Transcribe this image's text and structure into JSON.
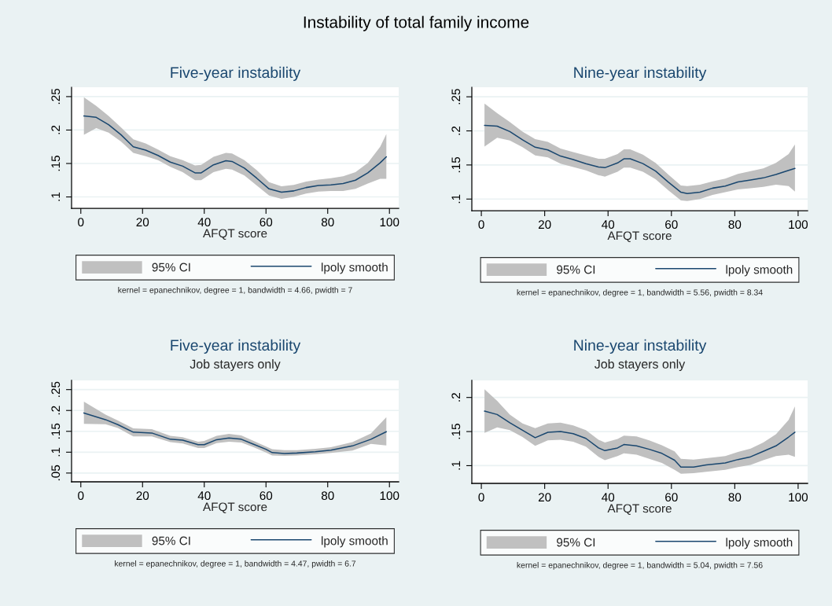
{
  "chart_data": [
    {
      "type": "other",
      "title": "Instability of total family income"
    },
    {
      "type": "line",
      "title": "Five-year instability",
      "xlabel": "AFQT score",
      "xlim": [
        -3,
        103
      ],
      "xticks": [
        0,
        20,
        40,
        60,
        80,
        100
      ],
      "ylim": [
        0.083,
        0.264
      ],
      "yticks": [
        {
          "value": 0.1,
          "label": ".1"
        },
        {
          "value": 0.15,
          "label": ".15"
        },
        {
          "value": 0.2,
          "label": ".2"
        },
        {
          "value": 0.25,
          "label": ".25"
        }
      ],
      "grid": "y",
      "legend": "bottom",
      "x": [
        1,
        5,
        9,
        13,
        17,
        21,
        25,
        29,
        33,
        37,
        39,
        43,
        47,
        49,
        53,
        57,
        61,
        65,
        69,
        73,
        77,
        81,
        85,
        89,
        93,
        97,
        99
      ],
      "series": [
        {
          "name": "lpoly smooth",
          "type": "line",
          "color": "#1a476f",
          "values": [
            0.221,
            0.219,
            0.208,
            0.193,
            0.175,
            0.17,
            0.162,
            0.152,
            0.146,
            0.136,
            0.136,
            0.148,
            0.154,
            0.153,
            0.143,
            0.128,
            0.112,
            0.107,
            0.109,
            0.114,
            0.117,
            0.118,
            0.12,
            0.125,
            0.136,
            0.151,
            0.16
          ],
          "lower": [
            0.193,
            0.203,
            0.196,
            0.183,
            0.166,
            0.161,
            0.155,
            0.145,
            0.137,
            0.125,
            0.125,
            0.137,
            0.142,
            0.141,
            0.132,
            0.117,
            0.102,
            0.097,
            0.1,
            0.105,
            0.108,
            0.109,
            0.109,
            0.112,
            0.12,
            0.127,
            0.127
          ],
          "upper": [
            0.249,
            0.236,
            0.221,
            0.204,
            0.186,
            0.18,
            0.171,
            0.161,
            0.155,
            0.147,
            0.148,
            0.16,
            0.166,
            0.165,
            0.155,
            0.14,
            0.122,
            0.116,
            0.118,
            0.123,
            0.126,
            0.128,
            0.131,
            0.137,
            0.151,
            0.175,
            0.194
          ]
        }
      ],
      "annotations": [
        "95% CI",
        "kernel = epanechnikov, degree = 1, bandwidth = 4.66, pwidth = 7"
      ]
    },
    {
      "type": "line",
      "title": "Nine-year instability",
      "xlabel": "AFQT score",
      "xlim": [
        -3,
        103
      ],
      "xticks": [
        0,
        20,
        40,
        60,
        80,
        100
      ],
      "ylim": [
        0.083,
        0.264
      ],
      "yticks": [
        {
          "value": 0.1,
          "label": ".1"
        },
        {
          "value": 0.15,
          "label": ".15"
        },
        {
          "value": 0.2,
          "label": ".2"
        },
        {
          "value": 0.25,
          "label": ".25"
        }
      ],
      "grid": "y",
      "legend": "bottom",
      "x": [
        1,
        5,
        9,
        13,
        17,
        21,
        25,
        29,
        33,
        37,
        39,
        43,
        45,
        47,
        51,
        55,
        59,
        63,
        65,
        69,
        73,
        77,
        81,
        85,
        89,
        93,
        97,
        99
      ],
      "series": [
        {
          "name": "lpoly smooth",
          "type": "line",
          "color": "#1a476f",
          "values": [
            0.208,
            0.207,
            0.199,
            0.187,
            0.176,
            0.172,
            0.163,
            0.158,
            0.152,
            0.147,
            0.146,
            0.153,
            0.159,
            0.159,
            0.152,
            0.141,
            0.125,
            0.11,
            0.108,
            0.11,
            0.116,
            0.119,
            0.125,
            0.128,
            0.131,
            0.136,
            0.142,
            0.145
          ],
          "lower": [
            0.177,
            0.19,
            0.186,
            0.176,
            0.164,
            0.161,
            0.152,
            0.147,
            0.142,
            0.135,
            0.133,
            0.14,
            0.146,
            0.146,
            0.14,
            0.129,
            0.113,
            0.098,
            0.097,
            0.1,
            0.106,
            0.11,
            0.114,
            0.116,
            0.118,
            0.121,
            0.119,
            0.111
          ],
          "upper": [
            0.24,
            0.226,
            0.213,
            0.199,
            0.188,
            0.184,
            0.174,
            0.169,
            0.164,
            0.159,
            0.159,
            0.166,
            0.173,
            0.173,
            0.165,
            0.153,
            0.136,
            0.12,
            0.119,
            0.121,
            0.126,
            0.13,
            0.137,
            0.141,
            0.145,
            0.153,
            0.166,
            0.18
          ]
        }
      ],
      "annotations": [
        "95% CI",
        "kernel = epanechnikov, degree = 1, bandwidth = 5.56, pwidth = 8.34"
      ]
    },
    {
      "type": "line",
      "title": "Five-year instability",
      "subtitle": "Job stayers only",
      "xlabel": "AFQT score",
      "xlim": [
        -3,
        103
      ],
      "xticks": [
        0,
        20,
        40,
        60,
        80,
        100
      ],
      "ylim": [
        0.029,
        0.272
      ],
      "yticks": [
        {
          "value": 0.05,
          "label": ".05"
        },
        {
          "value": 0.1,
          "label": ".1"
        },
        {
          "value": 0.15,
          "label": ".15"
        },
        {
          "value": 0.2,
          "label": ".2"
        },
        {
          "value": 0.25,
          "label": ".25"
        }
      ],
      "grid": "y",
      "legend": "bottom",
      "x": [
        1,
        8,
        12,
        17,
        23,
        29,
        33,
        38,
        40,
        44,
        48,
        52,
        56,
        60,
        62,
        66,
        70,
        76,
        81,
        88,
        94,
        99
      ],
      "series": [
        {
          "name": "lpoly smooth",
          "type": "line",
          "color": "#1a476f",
          "values": [
            0.194,
            0.178,
            0.166,
            0.148,
            0.146,
            0.131,
            0.129,
            0.118,
            0.118,
            0.13,
            0.134,
            0.131,
            0.119,
            0.107,
            0.099,
            0.097,
            0.098,
            0.101,
            0.105,
            0.115,
            0.131,
            0.149
          ],
          "lower": [
            0.168,
            0.167,
            0.158,
            0.138,
            0.138,
            0.124,
            0.121,
            0.11,
            0.11,
            0.122,
            0.125,
            0.123,
            0.112,
            0.099,
            0.092,
            0.091,
            0.092,
            0.095,
            0.098,
            0.104,
            0.12,
            0.116
          ],
          "upper": [
            0.221,
            0.19,
            0.176,
            0.157,
            0.155,
            0.139,
            0.136,
            0.125,
            0.127,
            0.139,
            0.144,
            0.14,
            0.127,
            0.114,
            0.107,
            0.105,
            0.105,
            0.108,
            0.112,
            0.124,
            0.145,
            0.184
          ]
        }
      ],
      "annotations": [
        "95% CI",
        "kernel = epanechnikov, degree = 1, bandwidth = 4.47, pwidth = 6.7"
      ]
    },
    {
      "type": "line",
      "title": "Nine-year instability",
      "subtitle": "Job stayers only",
      "xlabel": "AFQT score",
      "xlim": [
        -3,
        103
      ],
      "xticks": [
        0,
        20,
        40,
        60,
        80,
        100
      ],
      "ylim": [
        0.074,
        0.225
      ],
      "yticks": [
        {
          "value": 0.1,
          "label": ".1"
        },
        {
          "value": 0.15,
          "label": ".15"
        },
        {
          "value": 0.2,
          "label": ".2"
        }
      ],
      "grid": "y",
      "legend": "bottom",
      "x": [
        1,
        5,
        9,
        13,
        17,
        21,
        25,
        29,
        33,
        37,
        39,
        43,
        45,
        49,
        53,
        57,
        61,
        63,
        67,
        71,
        77,
        81,
        85,
        89,
        93,
        97,
        99
      ],
      "series": [
        {
          "name": "lpoly smooth",
          "type": "line",
          "color": "#1a476f",
          "values": [
            0.18,
            0.175,
            0.163,
            0.152,
            0.141,
            0.149,
            0.15,
            0.147,
            0.14,
            0.126,
            0.122,
            0.126,
            0.131,
            0.129,
            0.124,
            0.118,
            0.108,
            0.098,
            0.098,
            0.101,
            0.104,
            0.109,
            0.113,
            0.121,
            0.129,
            0.142,
            0.149
          ],
          "lower": [
            0.148,
            0.156,
            0.152,
            0.142,
            0.129,
            0.137,
            0.138,
            0.135,
            0.128,
            0.113,
            0.108,
            0.114,
            0.118,
            0.116,
            0.11,
            0.104,
            0.094,
            0.088,
            0.089,
            0.091,
            0.094,
            0.098,
            0.101,
            0.108,
            0.114,
            0.116,
            0.113
          ],
          "upper": [
            0.212,
            0.195,
            0.175,
            0.162,
            0.155,
            0.162,
            0.163,
            0.159,
            0.152,
            0.138,
            0.134,
            0.139,
            0.144,
            0.143,
            0.137,
            0.13,
            0.121,
            0.11,
            0.109,
            0.111,
            0.114,
            0.12,
            0.125,
            0.134,
            0.146,
            0.167,
            0.187
          ]
        }
      ],
      "annotations": [
        "95% CI",
        "kernel = epanechnikov, degree = 1, bandwidth = 5.04, pwidth = 7.56"
      ]
    }
  ]
}
